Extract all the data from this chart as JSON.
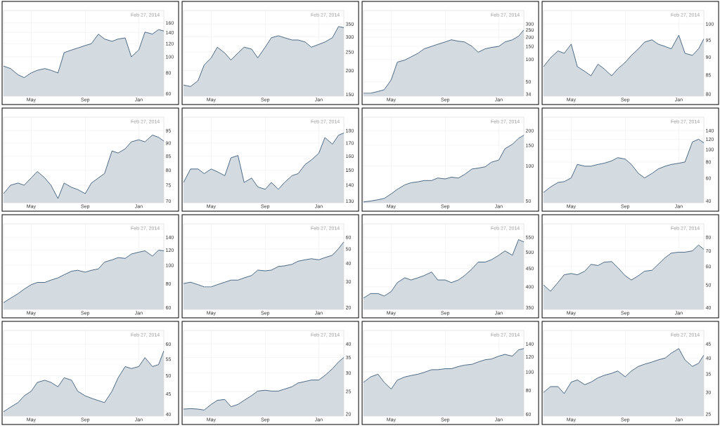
{
  "chart_data": [
    {
      "type": "area",
      "x": [
        "2013-02-27",
        "2013-03-15",
        "2013-04-01",
        "2013-04-15",
        "2013-05-01",
        "2013-05-15",
        "2013-06-01",
        "2013-06-15",
        "2013-07-01",
        "2013-07-15",
        "2013-08-01",
        "2013-08-15",
        "2013-09-01",
        "2013-09-15",
        "2013-10-01",
        "2013-10-15",
        "2013-11-01",
        "2013-11-15",
        "2013-12-01",
        "2013-12-15",
        "2014-01-01",
        "2014-01-15",
        "2014-02-01",
        "2014-02-15",
        "2014-02-27"
      ],
      "values": [
        88,
        85,
        78,
        75,
        80,
        83,
        85,
        83,
        80,
        106,
        110,
        113,
        117,
        120,
        137,
        128,
        124,
        128,
        130,
        100,
        110,
        141,
        137,
        146,
        143
      ],
      "color": "#24496b",
      "log": "y",
      "grid": true,
      "xlim": [
        "2013-02-27",
        "2014-02-27"
      ],
      "xticks": [
        {
          "value": "2013-05-01",
          "label": "May"
        },
        {
          "value": "2013-09-01",
          "label": "Sep"
        },
        {
          "value": "2014-01-01",
          "label": "Jan"
        }
      ],
      "ylim": [
        58,
        190
      ],
      "yticks": [
        60,
        80,
        100,
        120,
        140,
        160
      ],
      "annotations": [
        "Feb 27, 2014"
      ]
    },
    {
      "type": "area",
      "x": [
        "2013-02-27",
        "2013-03-15",
        "2013-04-01",
        "2013-04-15",
        "2013-05-01",
        "2013-05-15",
        "2013-06-01",
        "2013-06-15",
        "2013-07-01",
        "2013-07-15",
        "2013-08-01",
        "2013-08-15",
        "2013-09-01",
        "2013-09-15",
        "2013-10-01",
        "2013-10-15",
        "2013-11-01",
        "2013-11-15",
        "2013-12-01",
        "2013-12-15",
        "2014-01-01",
        "2014-01-15",
        "2014-02-01",
        "2014-02-15",
        "2014-02-27"
      ],
      "values": [
        168,
        165,
        177,
        214,
        233,
        265,
        247,
        227,
        247,
        265,
        259,
        233,
        265,
        297,
        304,
        297,
        289,
        289,
        282,
        265,
        274,
        282,
        297,
        340,
        335
      ],
      "color": "#24496b",
      "log": "y",
      "grid": true,
      "xlim": [
        "2013-02-27",
        "2014-02-27"
      ],
      "xticks": [
        {
          "value": "2013-05-01",
          "label": "May"
        },
        {
          "value": "2013-09-01",
          "label": "Sep"
        },
        {
          "value": "2014-01-01",
          "label": "Jan"
        }
      ],
      "ylim": [
        147,
        412
      ],
      "yticks": [
        150,
        200,
        250,
        300,
        350
      ],
      "annotations": [
        "Feb 27, 2014"
      ]
    },
    {
      "type": "area",
      "x": [
        "2013-02-27",
        "2013-03-15",
        "2013-04-01",
        "2013-04-15",
        "2013-05-01",
        "2013-05-15",
        "2013-06-01",
        "2013-06-15",
        "2013-07-01",
        "2013-07-15",
        "2013-08-01",
        "2013-08-15",
        "2013-09-01",
        "2013-09-15",
        "2013-10-01",
        "2013-10-15",
        "2013-11-01",
        "2013-11-15",
        "2013-12-01",
        "2013-12-15",
        "2014-01-01",
        "2014-01-15",
        "2014-02-01",
        "2014-02-15",
        "2014-02-27"
      ],
      "values": [
        35,
        35,
        37,
        39,
        53,
        92,
        98,
        108,
        121,
        139,
        150,
        160,
        172,
        184,
        176,
        172,
        150,
        125,
        139,
        145,
        150,
        172,
        184,
        206,
        250
      ],
      "color": "#24496b",
      "log": "y",
      "grid": true,
      "xlim": [
        "2013-02-27",
        "2014-02-27"
      ],
      "xticks": [
        {
          "value": "2013-05-01",
          "label": "May"
        },
        {
          "value": "2013-09-01",
          "label": "Sep"
        },
        {
          "value": "2014-01-01",
          "label": "Jan"
        }
      ],
      "ylim": [
        32,
        456
      ],
      "yticks": [
        34,
        50,
        100,
        150,
        200,
        250,
        300
      ],
      "annotations": [
        "Feb 27, 2014"
      ]
    },
    {
      "type": "area",
      "x": [
        "2013-02-27",
        "2013-03-15",
        "2013-04-01",
        "2013-04-15",
        "2013-05-01",
        "2013-05-15",
        "2013-06-01",
        "2013-06-15",
        "2013-07-01",
        "2013-07-15",
        "2013-08-01",
        "2013-08-15",
        "2013-09-01",
        "2013-09-15",
        "2013-10-01",
        "2013-10-15",
        "2013-11-01",
        "2013-11-15",
        "2013-12-01",
        "2013-12-15",
        "2014-01-01",
        "2014-01-15",
        "2014-02-01",
        "2014-02-15",
        "2014-02-27"
      ],
      "values": [
        87.3,
        89.8,
        91.8,
        91.1,
        93.8,
        87.3,
        86.0,
        84.8,
        88.0,
        86.7,
        84.8,
        86.7,
        88.5,
        90.5,
        92.4,
        94.4,
        95.1,
        93.8,
        93.1,
        92.4,
        96.5,
        91.1,
        90.5,
        92.4,
        95.4
      ],
      "color": "#24496b",
      "log": "y",
      "grid": true,
      "xlim": [
        "2013-02-27",
        "2014-02-27"
      ],
      "xticks": [
        {
          "value": "2013-05-01",
          "label": "May"
        },
        {
          "value": "2013-09-01",
          "label": "Sep"
        },
        {
          "value": "2014-01-01",
          "label": "Jan"
        }
      ],
      "ylim": [
        79.5,
        104.4
      ],
      "yticks": [
        80,
        85,
        90,
        95,
        100
      ],
      "annotations": [
        "Feb 27, 2014"
      ]
    },
    {
      "type": "area",
      "x": [
        "2013-02-27",
        "2013-03-15",
        "2013-04-01",
        "2013-04-15",
        "2013-05-01",
        "2013-05-15",
        "2013-06-01",
        "2013-06-15",
        "2013-07-01",
        "2013-07-15",
        "2013-08-01",
        "2013-08-15",
        "2013-09-01",
        "2013-09-15",
        "2013-10-01",
        "2013-10-15",
        "2013-11-01",
        "2013-11-15",
        "2013-12-01",
        "2013-12-15",
        "2014-01-01",
        "2014-01-15",
        "2014-02-01",
        "2014-02-15",
        "2014-02-27"
      ],
      "values": [
        72.3,
        75.0,
        75.7,
        75.0,
        77.4,
        79.6,
        77.4,
        75.0,
        70.8,
        75.7,
        74.3,
        73.6,
        72.3,
        75.7,
        77.4,
        78.9,
        87.0,
        86.2,
        87.8,
        90.5,
        91.3,
        90.5,
        93.2,
        92.3,
        90.8
      ],
      "color": "#24496b",
      "log": "y",
      "grid": true,
      "xlim": [
        "2013-02-27",
        "2014-02-27"
      ],
      "xticks": [
        {
          "value": "2013-05-01",
          "label": "May"
        },
        {
          "value": "2013-09-01",
          "label": "Sep"
        },
        {
          "value": "2014-01-01",
          "label": "Jan"
        }
      ],
      "ylim": [
        69.5,
        100.7
      ],
      "yticks": [
        70,
        75,
        80,
        85,
        90,
        95
      ],
      "annotations": [
        "Feb 27, 2014"
      ]
    },
    {
      "type": "area",
      "x": [
        "2013-02-27",
        "2013-03-15",
        "2013-04-01",
        "2013-04-15",
        "2013-05-01",
        "2013-05-15",
        "2013-06-01",
        "2013-06-15",
        "2013-07-01",
        "2013-07-15",
        "2013-08-01",
        "2013-08-15",
        "2013-09-01",
        "2013-09-15",
        "2013-10-01",
        "2013-10-15",
        "2013-11-01",
        "2013-11-15",
        "2013-12-01",
        "2013-12-15",
        "2014-01-01",
        "2014-01-15",
        "2014-02-01",
        "2014-02-15",
        "2014-02-27"
      ],
      "values": [
        141.7,
        150.8,
        150.8,
        147.6,
        150.8,
        148.9,
        146.2,
        158.8,
        160.5,
        141.7,
        144.6,
        138.8,
        137.3,
        141.7,
        137.3,
        141.7,
        146.2,
        147.6,
        154,
        157.2,
        162.2,
        174.4,
        169.1,
        176.3,
        178.1
      ],
      "color": "#24496b",
      "log": "y",
      "grid": true,
      "xlim": [
        "2013-02-27",
        "2014-02-27"
      ],
      "xticks": [
        {
          "value": "2013-05-01",
          "label": "May"
        },
        {
          "value": "2013-09-01",
          "label": "Sep"
        },
        {
          "value": "2014-01-01",
          "label": "Jan"
        }
      ],
      "ylim": [
        129,
        191.6
      ],
      "yticks": [
        130,
        140,
        150,
        160,
        170,
        180
      ],
      "annotations": [
        "Feb 27, 2014"
      ]
    },
    {
      "type": "area",
      "x": [
        "2013-02-27",
        "2013-03-15",
        "2013-04-01",
        "2013-04-15",
        "2013-05-01",
        "2013-05-15",
        "2013-06-01",
        "2013-06-15",
        "2013-07-01",
        "2013-07-15",
        "2013-08-01",
        "2013-08-15",
        "2013-09-01",
        "2013-09-15",
        "2013-10-01",
        "2013-10-15",
        "2013-11-01",
        "2013-11-15",
        "2013-12-01",
        "2013-12-15",
        "2014-01-01",
        "2014-01-15",
        "2014-02-01",
        "2014-02-15",
        "2014-02-27"
      ],
      "values": [
        49.1,
        50,
        51.3,
        52.6,
        57.6,
        63,
        68.8,
        71.7,
        73,
        74.9,
        74.9,
        78.7,
        77.3,
        80,
        78.7,
        84.4,
        94,
        95.6,
        98.2,
        107.4,
        112.2,
        140.1,
        153.2,
        172,
        183
      ],
      "color": "#24496b",
      "log": "y",
      "grid": true,
      "xlim": [
        "2013-02-27",
        "2014-02-27"
      ],
      "xticks": [
        {
          "value": "2013-05-01",
          "label": "May"
        },
        {
          "value": "2013-09-01",
          "label": "Sep"
        },
        {
          "value": "2014-01-01",
          "label": "Jan"
        }
      ],
      "ylim": [
        48.3,
        261
      ],
      "yticks": [
        50,
        100,
        150,
        200
      ],
      "annotations": [
        "Feb 27, 2014"
      ]
    },
    {
      "type": "area",
      "x": [
        "2013-02-27",
        "2013-03-15",
        "2013-04-01",
        "2013-04-15",
        "2013-05-01",
        "2013-05-15",
        "2013-06-01",
        "2013-06-15",
        "2013-07-01",
        "2013-07-15",
        "2013-08-01",
        "2013-08-15",
        "2013-09-01",
        "2013-09-15",
        "2013-10-01",
        "2013-10-15",
        "2013-11-01",
        "2013-11-15",
        "2013-12-01",
        "2013-12-15",
        "2014-01-01",
        "2014-01-15",
        "2014-02-01",
        "2014-02-15",
        "2014-02-27"
      ],
      "values": [
        46.5,
        51.3,
        55.6,
        56.4,
        60.3,
        76.7,
        74.3,
        74.3,
        76.7,
        78.3,
        81.7,
        86.5,
        84.3,
        76.7,
        65.3,
        60.3,
        65.3,
        70.7,
        74.3,
        76.7,
        78.3,
        80,
        114.5,
        120,
        112.7
      ],
      "color": "#24496b",
      "log": "y",
      "grid": true,
      "xlim": [
        "2013-02-27",
        "2014-02-27"
      ],
      "xticks": [
        {
          "value": "2013-05-01",
          "label": "May"
        },
        {
          "value": "2013-09-01",
          "label": "Sep"
        },
        {
          "value": "2014-01-01",
          "label": "Jan"
        }
      ],
      "ylim": [
        38.7,
        178
      ],
      "yticks": [
        40,
        60,
        80,
        100,
        120,
        140
      ],
      "annotations": [
        "Feb 27, 2014"
      ]
    },
    {
      "type": "area",
      "x": [
        "2013-02-27",
        "2013-03-15",
        "2013-04-01",
        "2013-04-15",
        "2013-05-01",
        "2013-05-15",
        "2013-06-01",
        "2013-06-15",
        "2013-07-01",
        "2013-07-15",
        "2013-08-01",
        "2013-08-15",
        "2013-09-01",
        "2013-09-15",
        "2013-10-01",
        "2013-10-15",
        "2013-11-01",
        "2013-11-15",
        "2013-12-01",
        "2013-12-15",
        "2014-01-01",
        "2014-01-15",
        "2014-02-01",
        "2014-02-15",
        "2014-02-27"
      ],
      "values": [
        63.7,
        67.2,
        71,
        75,
        79.1,
        81.3,
        81.3,
        83.6,
        85.9,
        89.2,
        93.1,
        94.1,
        92,
        94.1,
        95.7,
        103.9,
        106.7,
        109.7,
        108.6,
        114.5,
        117.1,
        119,
        111.7,
        120,
        119
      ],
      "color": "#24496b",
      "log": "y",
      "grid": true,
      "xlim": [
        "2013-02-27",
        "2014-02-27"
      ],
      "xticks": [
        {
          "value": "2013-05-01",
          "label": "May"
        },
        {
          "value": "2013-09-01",
          "label": "Sep"
        },
        {
          "value": "2014-01-01",
          "label": "Jan"
        }
      ],
      "ylim": [
        58.7,
        164.8
      ],
      "yticks": [
        60,
        80,
        100,
        120,
        140
      ],
      "annotations": [
        "Feb 27, 2014"
      ]
    },
    {
      "type": "area",
      "x": [
        "2013-02-27",
        "2013-03-15",
        "2013-04-01",
        "2013-04-15",
        "2013-05-01",
        "2013-05-15",
        "2013-06-01",
        "2013-06-15",
        "2013-07-01",
        "2013-07-15",
        "2013-08-01",
        "2013-08-15",
        "2013-09-01",
        "2013-09-15",
        "2013-10-01",
        "2013-10-15",
        "2013-11-01",
        "2013-11-15",
        "2013-12-01",
        "2013-12-15",
        "2014-01-01",
        "2014-01-15",
        "2014-02-01",
        "2014-02-15",
        "2014-02-27"
      ],
      "values": [
        29.1,
        29.7,
        28.6,
        27.6,
        27.6,
        28.6,
        29.7,
        30.7,
        30.7,
        31.8,
        33,
        35.9,
        35.5,
        35.9,
        38,
        38.4,
        39.3,
        41.3,
        42.2,
        42.9,
        42.2,
        43.7,
        45.3,
        50.3,
        55.9
      ],
      "color": "#24496b",
      "log": "y",
      "grid": true,
      "xlim": [
        "2013-02-27",
        "2014-02-27"
      ],
      "xticks": [
        {
          "value": "2013-05-01",
          "label": "May"
        },
        {
          "value": "2013-09-01",
          "label": "Sep"
        },
        {
          "value": "2014-01-01",
          "label": "Jan"
        }
      ],
      "ylim": [
        19.4,
        74.1
      ],
      "yticks": [
        20,
        30,
        40,
        50,
        60
      ],
      "annotations": [
        "Feb 27, 2014"
      ]
    },
    {
      "type": "area",
      "x": [
        "2013-02-27",
        "2013-03-15",
        "2013-04-01",
        "2013-04-15",
        "2013-05-01",
        "2013-05-15",
        "2013-06-01",
        "2013-06-15",
        "2013-07-01",
        "2013-07-15",
        "2013-08-01",
        "2013-08-15",
        "2013-09-01",
        "2013-09-15",
        "2013-10-01",
        "2013-10-15",
        "2013-11-01",
        "2013-11-15",
        "2013-12-01",
        "2013-12-15",
        "2014-01-01",
        "2014-01-15",
        "2014-02-01",
        "2014-02-15",
        "2014-02-27"
      ],
      "values": [
        372,
        383,
        383,
        377,
        388,
        411,
        424,
        418,
        424,
        430,
        440,
        418,
        418,
        411,
        418,
        430,
        449,
        469,
        469,
        476,
        490,
        504,
        490,
        542,
        534
      ],
      "color": "#24496b",
      "log": "y",
      "grid": true,
      "xlim": [
        "2013-02-27",
        "2014-02-27"
      ],
      "xticks": [
        {
          "value": "2013-05-01",
          "label": "May"
        },
        {
          "value": "2013-09-01",
          "label": "Sep"
        },
        {
          "value": "2014-01-01",
          "label": "Jan"
        }
      ],
      "ylim": [
        345.8,
        600
      ],
      "yticks": [
        350,
        400,
        450,
        500,
        550
      ],
      "annotations": [
        "Feb 27, 2014"
      ]
    },
    {
      "type": "area",
      "x": [
        "2013-02-27",
        "2013-03-15",
        "2013-04-01",
        "2013-04-15",
        "2013-05-01",
        "2013-05-15",
        "2013-06-01",
        "2013-06-15",
        "2013-07-01",
        "2013-07-15",
        "2013-08-01",
        "2013-08-15",
        "2013-09-01",
        "2013-09-15",
        "2013-10-01",
        "2013-10-15",
        "2013-11-01",
        "2013-11-15",
        "2013-12-01",
        "2013-12-15",
        "2014-01-01",
        "2014-01-15",
        "2014-02-01",
        "2014-02-15",
        "2014-02-27"
      ],
      "values": [
        50,
        47,
        51.3,
        55.3,
        56,
        55.3,
        57.3,
        61.3,
        60.6,
        62.6,
        63,
        59.4,
        54.8,
        52.5,
        54.8,
        57.3,
        57.8,
        61.3,
        65.5,
        68.5,
        69.1,
        69.1,
        70,
        74.2,
        71
      ],
      "color": "#24496b",
      "log": "y",
      "grid": true,
      "xlim": [
        "2013-02-27",
        "2014-02-27"
      ],
      "xticks": [
        {
          "value": "2013-05-01",
          "label": "May"
        },
        {
          "value": "2013-09-01",
          "label": "Sep"
        },
        {
          "value": "2014-01-01",
          "label": "Jan"
        }
      ],
      "ylim": [
        39.3,
        91.4
      ],
      "yticks": [
        40,
        50,
        60,
        70,
        80
      ],
      "annotations": [
        "Feb 27, 2014"
      ]
    },
    {
      "type": "area",
      "x": [
        "2013-02-27",
        "2013-03-15",
        "2013-04-01",
        "2013-04-15",
        "2013-05-01",
        "2013-05-15",
        "2013-06-01",
        "2013-06-15",
        "2013-07-01",
        "2013-07-15",
        "2013-08-01",
        "2013-08-15",
        "2013-09-01",
        "2013-09-15",
        "2013-10-01",
        "2013-10-15",
        "2013-11-01",
        "2013-11-15",
        "2013-12-01",
        "2013-12-15",
        "2014-01-01",
        "2014-01-15",
        "2014-02-01",
        "2014-02-15",
        "2014-02-27"
      ],
      "values": [
        40.6,
        41.7,
        42.8,
        44.5,
        45.7,
        48.1,
        48.7,
        48.1,
        46.9,
        49.4,
        48.7,
        45.7,
        44.5,
        43.9,
        43.3,
        42.8,
        45.7,
        49.4,
        52.7,
        52.1,
        52.7,
        55.5,
        52.7,
        53.3,
        57.7
      ],
      "color": "#24496b",
      "log": "y",
      "grid": true,
      "xlim": [
        "2013-02-27",
        "2014-02-27"
      ],
      "xticks": [
        {
          "value": "2013-05-01",
          "label": "May"
        },
        {
          "value": "2013-09-01",
          "label": "Sep"
        },
        {
          "value": "2014-01-01",
          "label": "Jan"
        }
      ],
      "ylim": [
        39.6,
        64.9
      ],
      "yticks": [
        40,
        45,
        50,
        55,
        60
      ],
      "annotations": [
        "Feb 27, 2014"
      ]
    },
    {
      "type": "area",
      "x": [
        "2013-02-27",
        "2013-03-15",
        "2013-04-01",
        "2013-04-15",
        "2013-05-01",
        "2013-05-15",
        "2013-06-01",
        "2013-06-15",
        "2013-07-01",
        "2013-07-15",
        "2013-08-01",
        "2013-08-15",
        "2013-09-01",
        "2013-09-15",
        "2013-10-01",
        "2013-10-15",
        "2013-11-01",
        "2013-11-15",
        "2013-12-01",
        "2013-12-15",
        "2014-01-01",
        "2014-01-15",
        "2014-02-01",
        "2014-02-15",
        "2014-02-27"
      ],
      "values": [
        21,
        21.1,
        21,
        20.8,
        22,
        22.9,
        23.1,
        21.5,
        22,
        22.9,
        24,
        25.1,
        25.3,
        25.1,
        25.1,
        25.6,
        26.2,
        27.2,
        27.6,
        28,
        28,
        29.3,
        31.3,
        33.5,
        35
      ],
      "color": "#24496b",
      "log": "y",
      "grid": true,
      "xlim": [
        "2013-02-27",
        "2014-02-27"
      ],
      "xticks": [
        {
          "value": "2013-05-01",
          "label": "May"
        },
        {
          "value": "2013-09-01",
          "label": "Sep"
        },
        {
          "value": "2014-01-01",
          "label": "Jan"
        }
      ],
      "ylim": [
        19.6,
        45.7
      ],
      "yticks": [
        20,
        25,
        30,
        35,
        40
      ],
      "annotations": [
        "Feb 27, 2014"
      ]
    },
    {
      "type": "area",
      "x": [
        "2013-02-27",
        "2013-03-15",
        "2013-04-01",
        "2013-04-15",
        "2013-05-01",
        "2013-05-15",
        "2013-06-01",
        "2013-06-15",
        "2013-07-01",
        "2013-07-15",
        "2013-08-01",
        "2013-08-15",
        "2013-09-01",
        "2013-09-15",
        "2013-10-01",
        "2013-10-15",
        "2013-11-01",
        "2013-11-15",
        "2013-12-01",
        "2013-12-15",
        "2014-01-01",
        "2014-01-15",
        "2014-02-01",
        "2014-02-15",
        "2014-02-27"
      ],
      "values": [
        88.2,
        94.1,
        97.3,
        88.2,
        81.3,
        90.6,
        94.1,
        95.7,
        97.3,
        99.4,
        102.7,
        102.7,
        103.9,
        103.9,
        106.7,
        108.5,
        109.6,
        112.7,
        115.8,
        116.8,
        120.9,
        123.5,
        120.9,
        130.5,
        132.6
      ],
      "color": "#24496b",
      "log": "y",
      "grid": true,
      "xlim": [
        "2013-02-27",
        "2014-02-27"
      ],
      "xticks": [
        {
          "value": "2013-05-01",
          "label": "May"
        },
        {
          "value": "2013-09-01",
          "label": "Sep"
        },
        {
          "value": "2014-01-01",
          "label": "Jan"
        }
      ],
      "ylim": [
        58.7,
        164.8
      ],
      "yticks": [
        60,
        80,
        100,
        120,
        140
      ],
      "annotations": [
        "Feb 27, 2014"
      ]
    },
    {
      "type": "area",
      "x": [
        "2013-02-27",
        "2013-03-15",
        "2013-04-01",
        "2013-04-15",
        "2013-05-01",
        "2013-05-15",
        "2013-06-01",
        "2013-06-15",
        "2013-07-01",
        "2013-07-15",
        "2013-08-01",
        "2013-08-15",
        "2013-09-01",
        "2013-09-15",
        "2013-10-01",
        "2013-10-15",
        "2013-11-01",
        "2013-11-15",
        "2013-12-01",
        "2013-12-15",
        "2014-01-01",
        "2014-01-15",
        "2014-02-01",
        "2014-02-15",
        "2014-02-27"
      ],
      "values": [
        30,
        31.5,
        31.5,
        29.7,
        32.7,
        33.3,
        32,
        32.7,
        33.9,
        34.6,
        35.2,
        35.9,
        34.2,
        35.9,
        37.3,
        38,
        38.7,
        39.4,
        40,
        41.7,
        43.3,
        39.4,
        37.3,
        38.3,
        41
      ],
      "color": "#24496b",
      "log": "y",
      "grid": true,
      "xlim": [
        "2013-02-27",
        "2014-02-27"
      ],
      "xticks": [
        {
          "value": "2013-05-01",
          "label": "May"
        },
        {
          "value": "2013-09-01",
          "label": "Sep"
        },
        {
          "value": "2014-01-01",
          "label": "Jan"
        }
      ],
      "ylim": [
        24.6,
        50.4
      ],
      "yticks": [
        25,
        30,
        35,
        40,
        45
      ],
      "annotations": [
        "Feb 27, 2014"
      ]
    }
  ]
}
